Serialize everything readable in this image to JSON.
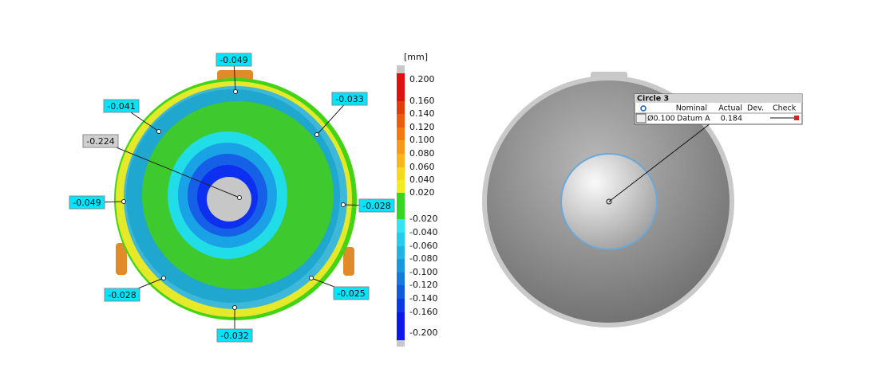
{
  "deviation_map": {
    "callouts": [
      {
        "label": "-0.049"
      },
      {
        "label": "-0.033"
      },
      {
        "label": "-0.041"
      },
      {
        "label": "-0.224"
      },
      {
        "label": "-0.049"
      },
      {
        "label": "-0.028"
      },
      {
        "label": "-0.028"
      },
      {
        "label": "-0.025"
      },
      {
        "label": "-0.032"
      }
    ]
  },
  "color_scale": {
    "unit": "[mm]",
    "ticks": [
      "0.200",
      "0.160",
      "0.140",
      "0.120",
      "0.100",
      "0.080",
      "0.060",
      "0.040",
      "0.020",
      "-0.020",
      "-0.040",
      "-0.060",
      "-0.080",
      "-0.100",
      "-0.120",
      "-0.140",
      "-0.160",
      "-0.200"
    ]
  },
  "feature_table": {
    "title": "Circle 3",
    "headers": [
      "Nominal",
      "Actual",
      "Dev.",
      "Check"
    ],
    "row": [
      "Ø0.100",
      "Datum A",
      "0.184"
    ]
  }
}
